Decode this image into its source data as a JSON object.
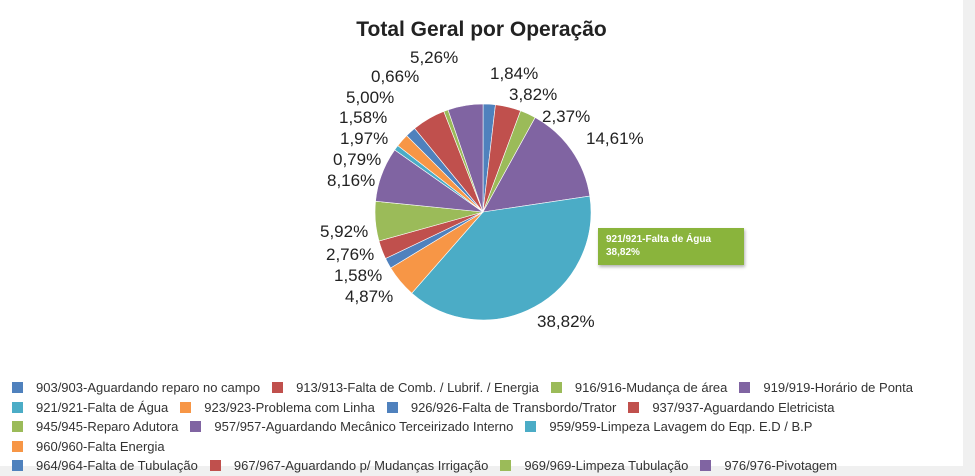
{
  "chart_data": {
    "type": "pie",
    "title": "Total Geral por Operação",
    "legend_position": "bottom",
    "slices": [
      {
        "name": "903/903-Aguardando reparo no campo",
        "value": 1.84,
        "label": "1,84%",
        "color": "#4f81bd"
      },
      {
        "name": "913/913-Falta de Comb. / Lubrif. / Energia",
        "value": 3.82,
        "label": "3,82%",
        "color": "#c0504d"
      },
      {
        "name": "916/916-Mudança de área",
        "value": 2.37,
        "label": "2,37%",
        "color": "#9bbb59"
      },
      {
        "name": "919/919-Horário de Ponta",
        "value": 14.61,
        "label": "14,61%",
        "color": "#8064a2"
      },
      {
        "name": "921/921-Falta de Água",
        "value": 38.82,
        "label": "38,82%",
        "color": "#4bacc6"
      },
      {
        "name": "923/923-Problema com Linha",
        "value": 4.87,
        "label": "4,87%",
        "color": "#f79646"
      },
      {
        "name": "926/926-Falta de Transbordo/Trator",
        "value": 1.58,
        "label": "1,58%",
        "color": "#4f81bd"
      },
      {
        "name": "937/937-Aguardando Eletricista",
        "value": 2.76,
        "label": "2,76%",
        "color": "#c0504d"
      },
      {
        "name": "945/945-Reparo Adutora",
        "value": 5.92,
        "label": "5,92%",
        "color": "#9bbb59"
      },
      {
        "name": "957/957-Aguardando Mecânico Terceirizado Interno",
        "value": 8.16,
        "label": "8,16%",
        "color": "#8064a2"
      },
      {
        "name": "959/959-Limpeza Lavagem do Eqp. E.D / B.P",
        "value": 0.79,
        "label": "0,79%",
        "color": "#4bacc6"
      },
      {
        "name": "960/960-Falta Energia",
        "value": 1.97,
        "label": "1,97%",
        "color": "#f79646"
      },
      {
        "name": "964/964-Falta de Tubulação",
        "value": 1.58,
        "label": "1,58%",
        "color": "#4f81bd"
      },
      {
        "name": "967/967-Aguardando p/ Mudanças Irrigação",
        "value": 5.0,
        "label": "5,00%",
        "color": "#c0504d"
      },
      {
        "name": "969/969-Limpeza Tubulação",
        "value": 0.66,
        "label": "0,66%",
        "color": "#9bbb59"
      },
      {
        "name": "976/976-Pivotagem",
        "value": 5.26,
        "label": "5,26%",
        "color": "#8064a2"
      }
    ]
  },
  "tooltip": {
    "title": "921/921-Falta de Água",
    "value": "38,82%",
    "color": "#8ab43c"
  }
}
